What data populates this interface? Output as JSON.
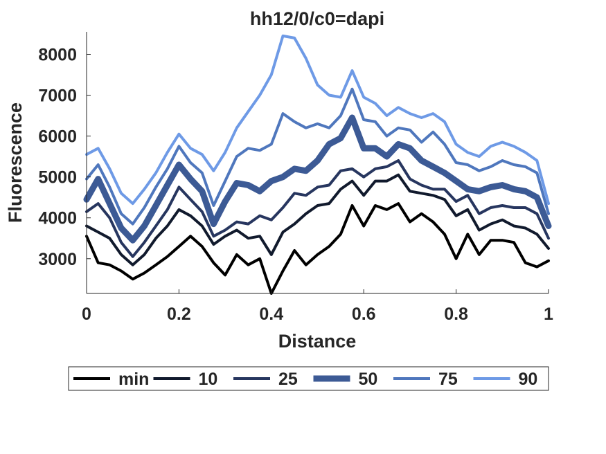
{
  "chart_data": {
    "type": "line",
    "title": "hh12/0/c0=dapi",
    "xlabel": "Distance",
    "ylabel": "Fluorescence",
    "xlim": [
      0,
      1
    ],
    "ylim": [
      2150,
      8550
    ],
    "xticks": [
      0,
      0.2,
      0.4,
      0.6,
      0.8,
      1
    ],
    "xtick_labels": [
      "0",
      "0.2",
      "0.4",
      "0.6",
      "0.8",
      "1"
    ],
    "yticks": [
      3000,
      4000,
      5000,
      6000,
      7000,
      8000
    ],
    "ytick_labels": [
      "3000",
      "4000",
      "5000",
      "6000",
      "7000",
      "8000"
    ],
    "grid": false,
    "legend_position": "bottom, outside, horizontal",
    "x": [
      0,
      0.025,
      0.05,
      0.075,
      0.1,
      0.125,
      0.15,
      0.175,
      0.2,
      0.225,
      0.25,
      0.275,
      0.3,
      0.325,
      0.35,
      0.375,
      0.4,
      0.425,
      0.45,
      0.475,
      0.5,
      0.525,
      0.55,
      0.575,
      0.6,
      0.625,
      0.65,
      0.675,
      0.7,
      0.725,
      0.75,
      0.775,
      0.8,
      0.825,
      0.85,
      0.875,
      0.9,
      0.925,
      0.95,
      0.975,
      1
    ],
    "series": [
      {
        "name": "min",
        "color": "#000000",
        "width": 4,
        "values": [
          3550,
          2900,
          2850,
          2700,
          2500,
          2650,
          2850,
          3050,
          3300,
          3550,
          3300,
          2900,
          2600,
          3100,
          2850,
          3000,
          2150,
          2700,
          3200,
          2850,
          3100,
          3300,
          3600,
          4300,
          3800,
          4300,
          4200,
          4350,
          3900,
          4100,
          3900,
          3600,
          3000,
          3600,
          3100,
          3450,
          3450,
          3400,
          2900,
          2800,
          2950
        ]
      },
      {
        "name": "10",
        "color": "#111a2d",
        "width": 4,
        "values": [
          3800,
          3650,
          3500,
          3100,
          2850,
          3100,
          3500,
          3800,
          4200,
          4050,
          3800,
          3350,
          3550,
          3700,
          3500,
          3550,
          3100,
          3650,
          3850,
          4100,
          4300,
          4350,
          4700,
          4900,
          4550,
          4900,
          4900,
          5050,
          4650,
          4600,
          4550,
          4450,
          4050,
          4200,
          3700,
          3850,
          3950,
          3800,
          3750,
          3600,
          3250
        ]
      },
      {
        "name": "25",
        "color": "#27365f",
        "width": 4,
        "values": [
          4150,
          4350,
          4000,
          3400,
          3050,
          3400,
          3800,
          4200,
          4750,
          4450,
          4150,
          3550,
          3700,
          3900,
          3850,
          4050,
          3950,
          4250,
          4600,
          4550,
          4750,
          4800,
          5150,
          5200,
          5000,
          5200,
          5250,
          5400,
          4950,
          4800,
          4700,
          4700,
          4400,
          4550,
          4100,
          4250,
          4300,
          4250,
          4250,
          4100,
          3500
        ]
      },
      {
        "name": "50",
        "color": "#3c5a95",
        "width": 9,
        "values": [
          4450,
          4950,
          4350,
          3750,
          3450,
          3800,
          4300,
          4800,
          5300,
          4950,
          4650,
          3850,
          4400,
          4850,
          4800,
          4650,
          4900,
          5000,
          5200,
          5150,
          5400,
          5800,
          5950,
          6450,
          5700,
          5700,
          5500,
          5800,
          5700,
          5400,
          5250,
          5100,
          4900,
          4700,
          4650,
          4750,
          4800,
          4700,
          4650,
          4500,
          3800
        ]
      },
      {
        "name": "75",
        "color": "#4f77bd",
        "width": 4,
        "values": [
          4950,
          5300,
          4750,
          4100,
          3850,
          4250,
          4750,
          5200,
          5750,
          5350,
          5100,
          4300,
          4900,
          5500,
          5700,
          5650,
          5800,
          6550,
          6350,
          6200,
          6300,
          6200,
          6500,
          7150,
          6400,
          6350,
          6000,
          6200,
          6150,
          5850,
          6100,
          5800,
          5350,
          5300,
          5150,
          5250,
          5400,
          5300,
          5250,
          5100,
          4100
        ]
      },
      {
        "name": "90",
        "color": "#6e9ae6",
        "width": 4,
        "values": [
          5550,
          5700,
          5200,
          4600,
          4350,
          4700,
          5100,
          5600,
          6050,
          5700,
          5550,
          5150,
          5600,
          6200,
          6600,
          7000,
          7500,
          8450,
          8400,
          7900,
          7250,
          7000,
          6950,
          7600,
          6950,
          6800,
          6500,
          6700,
          6550,
          6450,
          6550,
          6350,
          5800,
          5600,
          5500,
          5750,
          5850,
          5750,
          5600,
          5400,
          4350
        ]
      }
    ]
  }
}
